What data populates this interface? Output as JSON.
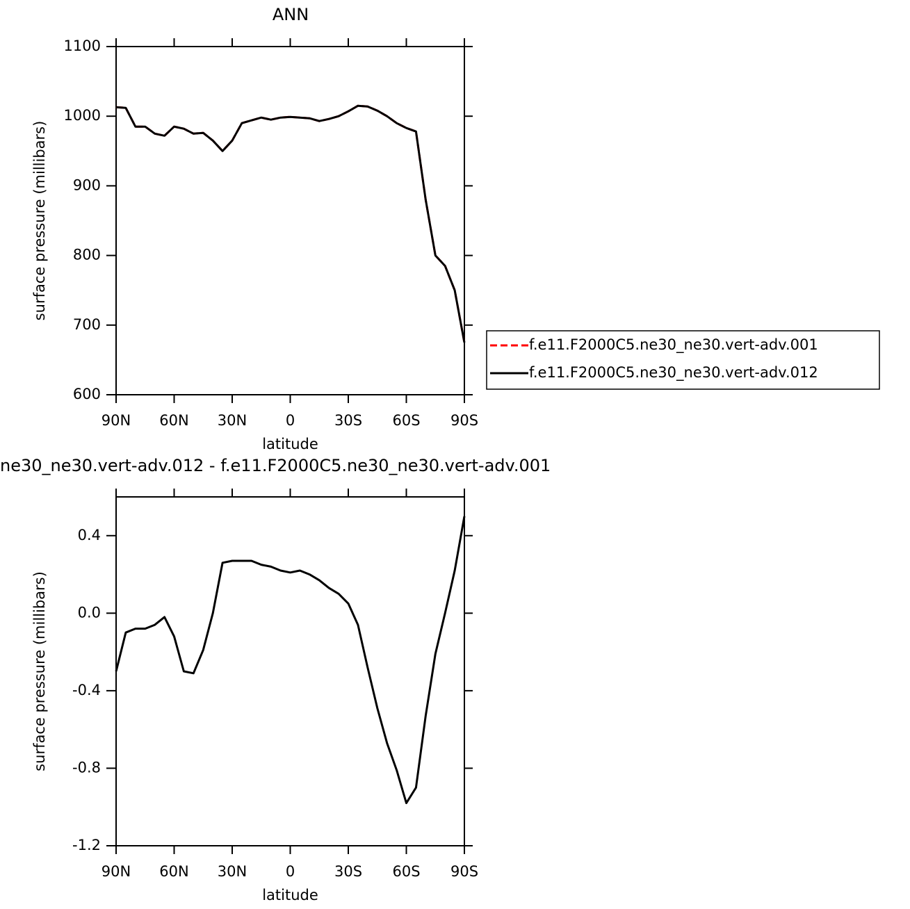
{
  "chart_data": [
    {
      "type": "line",
      "title": "ANN",
      "xlabel": "latitude",
      "ylabel": "surface pressure (millibars)",
      "x": [
        90,
        85,
        80,
        75,
        70,
        65,
        60,
        55,
        50,
        45,
        40,
        35,
        30,
        25,
        20,
        15,
        10,
        5,
        0,
        -5,
        -10,
        -15,
        -20,
        -25,
        -30,
        -35,
        -40,
        -45,
        -50,
        -55,
        -60,
        -65,
        -70,
        -75,
        -80,
        -85,
        -90
      ],
      "series": [
        {
          "name": "f.e11.F2000C5.ne30_ne30.vert-adv.001",
          "color": "#ff0000",
          "dashed": true,
          "values": [
            1013,
            1012,
            985,
            985,
            975,
            972,
            985,
            982,
            975,
            976,
            965,
            950,
            965,
            990,
            994,
            998,
            995,
            998,
            999,
            998,
            997,
            993,
            996,
            1000,
            1007,
            1015,
            1014,
            1008,
            1000,
            990,
            983,
            978,
            880,
            800,
            785,
            750,
            675
          ]
        },
        {
          "name": "f.e11.F2000C5.ne30_ne30.vert-adv.012",
          "color": "#000000",
          "dashed": false,
          "values": [
            1013,
            1012,
            985,
            985,
            975,
            972,
            985,
            982,
            975,
            976,
            965,
            950,
            965,
            990,
            994,
            998,
            995,
            998,
            999,
            998,
            997,
            993,
            996,
            1000,
            1007,
            1015,
            1014,
            1008,
            1000,
            990,
            983,
            978,
            880,
            800,
            785,
            750,
            675
          ]
        }
      ],
      "xlim": [
        90,
        -90
      ],
      "xticks": [
        {
          "value": 90,
          "label": "90N"
        },
        {
          "value": 60,
          "label": "60N"
        },
        {
          "value": 30,
          "label": "30N"
        },
        0,
        {
          "value": -30,
          "label": "30S"
        },
        {
          "value": -60,
          "label": "60S"
        },
        {
          "value": -90,
          "label": "90S"
        }
      ],
      "ylim": [
        600,
        1100
      ],
      "yticks": [
        600,
        700,
        800,
        900,
        1000,
        1100
      ],
      "legend": "right"
    },
    {
      "type": "line",
      "title": "ne30_ne30.vert-adv.012 - f.e11.F2000C5.ne30_ne30.vert-adv.001",
      "xlabel": "latitude",
      "ylabel": "surface pressure (millibars)",
      "x": [
        90,
        85,
        80,
        75,
        70,
        65,
        60,
        55,
        50,
        45,
        40,
        35,
        30,
        25,
        20,
        15,
        10,
        5,
        0,
        -5,
        -10,
        -15,
        -20,
        -25,
        -30,
        -35,
        -40,
        -45,
        -50,
        -55,
        -60,
        -65,
        -70,
        -75,
        -80,
        -85,
        -90
      ],
      "series": [
        {
          "color": "#000000",
          "dashed": false,
          "values": [
            -0.3,
            -0.1,
            -0.08,
            -0.08,
            -0.06,
            -0.02,
            -0.12,
            -0.3,
            -0.31,
            -0.19,
            0.0,
            0.26,
            0.27,
            0.27,
            0.27,
            0.25,
            0.24,
            0.22,
            0.21,
            0.22,
            0.2,
            0.17,
            0.13,
            0.1,
            0.05,
            -0.06,
            -0.28,
            -0.49,
            -0.67,
            -0.81,
            -0.98,
            -0.9,
            -0.53,
            -0.21,
            0.0,
            0.22,
            0.5
          ]
        }
      ],
      "xlim": [
        90,
        -90
      ],
      "xticks": [
        {
          "value": 90,
          "label": "90N"
        },
        {
          "value": 60,
          "label": "60N"
        },
        {
          "value": 30,
          "label": "30N"
        },
        0,
        {
          "value": -30,
          "label": "30S"
        },
        {
          "value": -60,
          "label": "60S"
        },
        {
          "value": -90,
          "label": "90S"
        }
      ],
      "ylim": [
        -1.2,
        0.6
      ],
      "yticks": [
        -1.2,
        -0.8,
        -0.4,
        {
          "value": 0,
          "label": "0.0"
        },
        0.4
      ]
    }
  ]
}
